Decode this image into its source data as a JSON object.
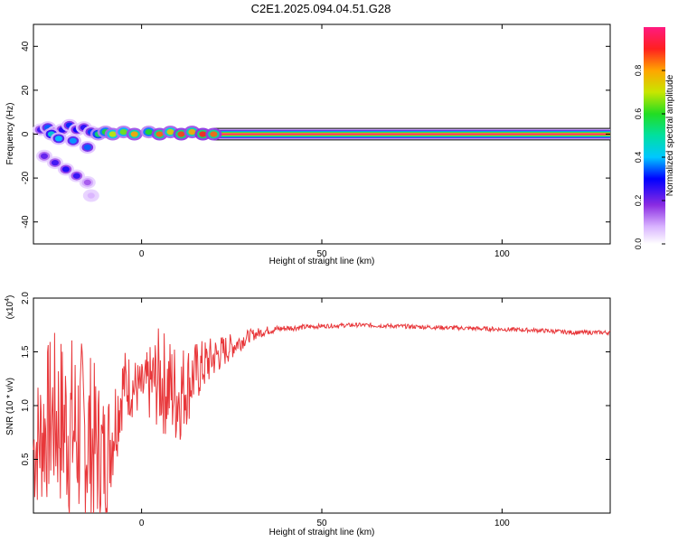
{
  "page": {
    "title": "C2E1.2025.094.04.51.G28"
  },
  "chart_data": [
    {
      "type": "heatmap",
      "xlabel": "Height of straight line (km)",
      "ylabel": "Frequency (Hz)",
      "xlim": [
        -30,
        130
      ],
      "ylim": [
        -50,
        50
      ],
      "xticks": [
        0,
        50,
        100
      ],
      "yticks": [
        -40,
        -20,
        0,
        20,
        40
      ],
      "colorbar": {
        "label": "Normalized spectral amplitude",
        "range": [
          0.0,
          1.0
        ],
        "ticks": [
          0.0,
          0.2,
          0.4,
          0.6,
          0.8
        ]
      },
      "blobs": [
        {
          "x": -28,
          "y": 2,
          "v": 0.25
        },
        {
          "x": -26,
          "y": 3,
          "v": 0.35
        },
        {
          "x": -24,
          "y": 1,
          "v": 0.3
        },
        {
          "x": -22,
          "y": 2,
          "v": 0.28
        },
        {
          "x": -20,
          "y": 4,
          "v": 0.32
        },
        {
          "x": -18,
          "y": 2,
          "v": 0.3
        },
        {
          "x": -16,
          "y": 3,
          "v": 0.27
        },
        {
          "x": -14,
          "y": 1,
          "v": 0.33
        },
        {
          "x": -27,
          "y": -10,
          "v": 0.22
        },
        {
          "x": -24,
          "y": -13,
          "v": 0.25
        },
        {
          "x": -21,
          "y": -16,
          "v": 0.28
        },
        {
          "x": -18,
          "y": -19,
          "v": 0.26
        },
        {
          "x": -15,
          "y": -22,
          "v": 0.15
        },
        {
          "x": -14,
          "y": -28,
          "v": 0.08
        },
        {
          "x": -25,
          "y": 0,
          "v": 0.45
        },
        {
          "x": -23,
          "y": -2,
          "v": 0.4
        },
        {
          "x": -19,
          "y": -3,
          "v": 0.38
        },
        {
          "x": -15,
          "y": -6,
          "v": 0.35
        },
        {
          "x": -12,
          "y": 0,
          "v": 0.55
        },
        {
          "x": -10,
          "y": 1,
          "v": 0.6
        },
        {
          "x": -8,
          "y": 0,
          "v": 0.7
        },
        {
          "x": -5,
          "y": 1,
          "v": 0.65
        },
        {
          "x": -2,
          "y": 0,
          "v": 0.8
        },
        {
          "x": 2,
          "y": 1,
          "v": 0.6
        },
        {
          "x": 5,
          "y": 0,
          "v": 0.85
        },
        {
          "x": 8,
          "y": 1,
          "v": 0.75
        },
        {
          "x": 11,
          "y": 0,
          "v": 0.88
        },
        {
          "x": 14,
          "y": 1,
          "v": 0.8
        },
        {
          "x": 17,
          "y": 0,
          "v": 0.9
        },
        {
          "x": 20,
          "y": 0,
          "v": 0.85
        }
      ],
      "ridge": {
        "x_start": 20,
        "x_end": 130,
        "y": 0,
        "v": 1.0
      }
    },
    {
      "type": "line",
      "xlabel": "Height of straight line (km)",
      "ylabel": "SNR (10 * v/v)",
      "yscale_label": "(x10",
      "yscale_exp": "4",
      "xlim": [
        -30,
        130
      ],
      "ylim": [
        0,
        2.0
      ],
      "xticks": [
        0,
        50,
        100
      ],
      "yticks": [
        0.5,
        1.0,
        1.5,
        2.0
      ],
      "series": [
        {
          "color": "#e8373a",
          "x": [
            -30,
            -25,
            -20,
            -15,
            -10,
            -5,
            0,
            5,
            10,
            15,
            20,
            25,
            30,
            35,
            40,
            50,
            60,
            70,
            80,
            90,
            100,
            110,
            120,
            130
          ],
          "y": [
            0.6,
            0.9,
            0.8,
            0.7,
            0.5,
            1.2,
            1.15,
            1.25,
            1.1,
            1.3,
            1.45,
            1.55,
            1.65,
            1.7,
            1.72,
            1.74,
            1.75,
            1.74,
            1.73,
            1.72,
            1.71,
            1.7,
            1.68,
            1.68
          ],
          "noise": [
            0.6,
            0.8,
            0.9,
            0.9,
            0.6,
            0.35,
            0.25,
            0.5,
            0.5,
            0.3,
            0.2,
            0.12,
            0.06,
            0.04,
            0.03,
            0.02,
            0.02,
            0.02,
            0.02,
            0.02,
            0.02,
            0.02,
            0.02,
            0.02
          ]
        }
      ]
    }
  ]
}
